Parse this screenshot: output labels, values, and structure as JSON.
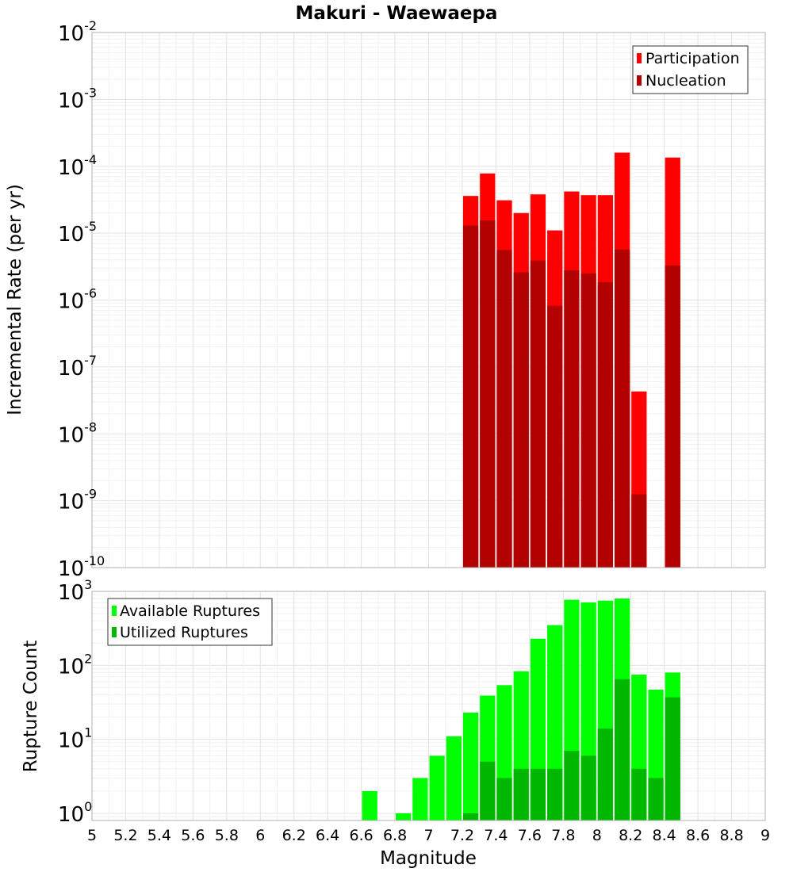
{
  "chart_data": {
    "type": "bar",
    "title": "Makuri - Waewaepa",
    "xlabel": "Magnitude",
    "xlim": [
      5,
      9
    ],
    "bin_width": 0.1,
    "x_ticks": [
      "5",
      "5.2",
      "5.4",
      "5.6",
      "5.8",
      "6",
      "6.2",
      "6.4",
      "6.6",
      "6.8",
      "7",
      "7.2",
      "7.4",
      "7.6",
      "7.8",
      "8",
      "8.2",
      "8.4",
      "8.6",
      "8.8",
      "9"
    ],
    "grid": true,
    "panels": [
      {
        "id": "rate",
        "ylabel": "Incremental Rate (per yr)",
        "yscale": "log",
        "ylim": [
          1e-10,
          0.01
        ],
        "y_ticks": [
          {
            "base": "10",
            "exp": "-10",
            "value": 1e-10
          },
          {
            "base": "10",
            "exp": "-9",
            "value": 1e-09
          },
          {
            "base": "10",
            "exp": "-8",
            "value": 1e-08
          },
          {
            "base": "10",
            "exp": "-7",
            "value": 1e-07
          },
          {
            "base": "10",
            "exp": "-6",
            "value": 1e-06
          },
          {
            "base": "10",
            "exp": "-5",
            "value": 1e-05
          },
          {
            "base": "10",
            "exp": "-4",
            "value": 0.0001
          },
          {
            "base": "10",
            "exp": "-3",
            "value": 0.001
          },
          {
            "base": "10",
            "exp": "-2",
            "value": 0.01
          }
        ],
        "legend_position": "top-right",
        "series": [
          {
            "name": "Participation",
            "color": "#ff0000",
            "x": [
              7.25,
              7.35,
              7.45,
              7.55,
              7.65,
              7.75,
              7.85,
              7.95,
              8.05,
              8.15,
              8.25,
              8.45
            ],
            "values": [
              3.6e-05,
              7.8e-05,
              3.1e-05,
              2e-05,
              3.8e-05,
              1.1e-05,
              4.2e-05,
              3.7e-05,
              3.7e-05,
              0.00016,
              4.3e-08,
              0.000135
            ]
          },
          {
            "name": "Nucleation",
            "color": "#b30000",
            "x": [
              7.25,
              7.35,
              7.45,
              7.55,
              7.65,
              7.75,
              7.85,
              7.95,
              8.05,
              8.15,
              8.25,
              8.45
            ],
            "values": [
              1.3e-05,
              1.55e-05,
              5.6e-06,
              2.6e-06,
              3.9e-06,
              8.2e-07,
              2.8e-06,
              2.5e-06,
              1.85e-06,
              5.7e-06,
              1.25e-09,
              3.3e-06
            ]
          }
        ]
      },
      {
        "id": "count",
        "ylabel": "Rupture Count",
        "yscale": "log",
        "ylim": [
          0.8,
          1000
        ],
        "y_ticks": [
          {
            "base": "10",
            "exp": "0",
            "value": 1
          },
          {
            "base": "10",
            "exp": "1",
            "value": 10
          },
          {
            "base": "10",
            "exp": "2",
            "value": 100
          },
          {
            "base": "10",
            "exp": "3",
            "value": 1000
          }
        ],
        "legend_position": "top-left",
        "series": [
          {
            "name": "Available Ruptures",
            "color": "#00ff00",
            "x": [
              6.65,
              6.85,
              6.95,
              7.05,
              7.15,
              7.25,
              7.35,
              7.45,
              7.55,
              7.65,
              7.75,
              7.85,
              7.95,
              8.05,
              8.15,
              8.25,
              8.35,
              8.45
            ],
            "values": [
              2,
              1,
              3,
              6,
              11,
              23,
              39,
              54,
              83,
              229,
              350,
              770,
              710,
              750,
              800,
              75,
              47,
              80
            ]
          },
          {
            "name": "Utilized Ruptures",
            "color": "#00b800",
            "x": [
              7.25,
              7.35,
              7.45,
              7.55,
              7.65,
              7.75,
              7.85,
              7.95,
              8.05,
              8.15,
              8.25,
              8.35,
              8.45
            ],
            "values": [
              1,
              5,
              3,
              4,
              4,
              4,
              7,
              6,
              14,
              65,
              4,
              3,
              37
            ]
          }
        ]
      }
    ]
  }
}
